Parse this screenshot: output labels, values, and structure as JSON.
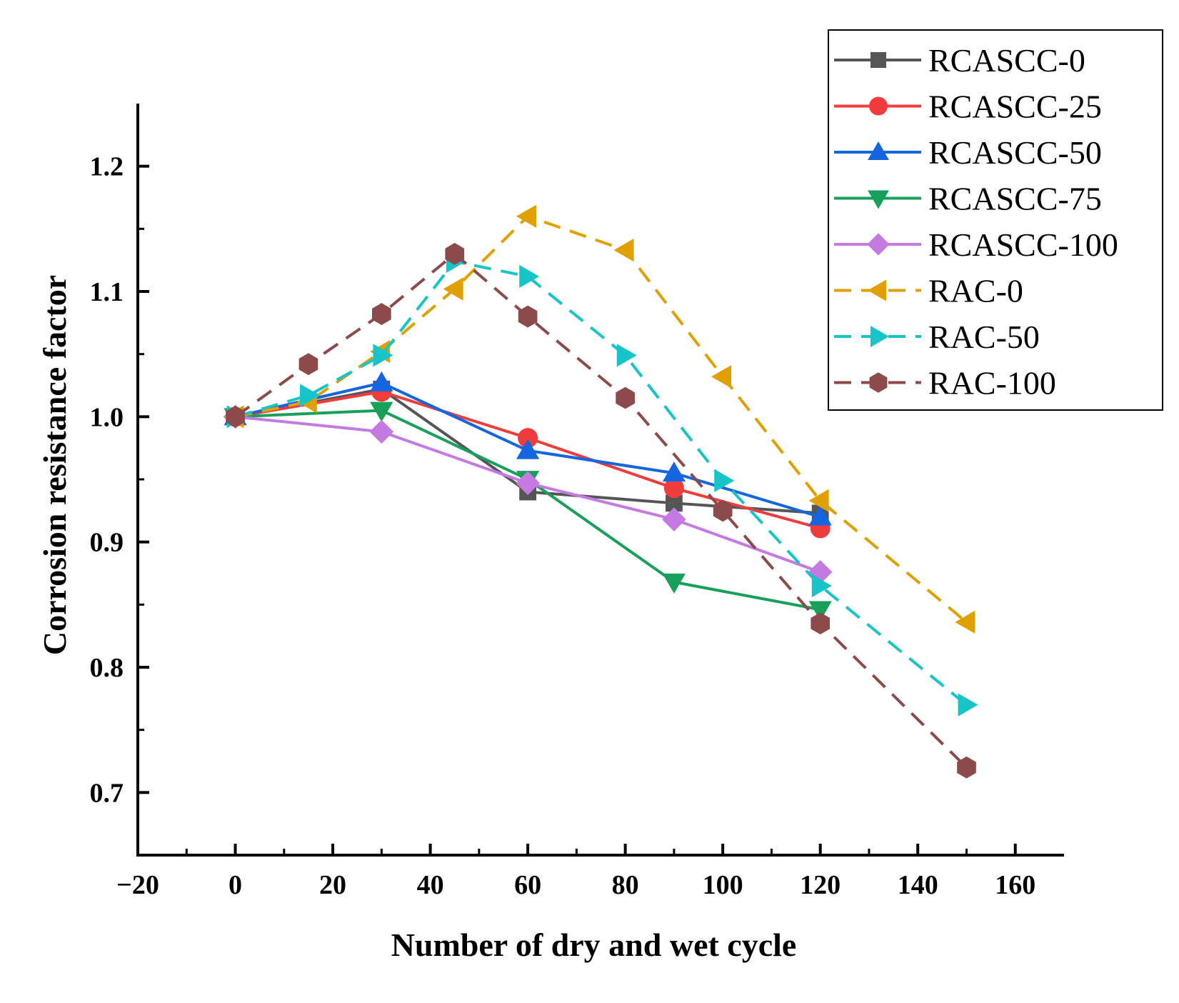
{
  "chart_data": {
    "type": "line",
    "xlabel": "Number of dry and wet cycle",
    "ylabel": "Corrosion resistance factor",
    "xlim": [
      -20,
      170
    ],
    "ylim": [
      0.65,
      1.25
    ],
    "xticks": [
      -20,
      0,
      20,
      40,
      60,
      80,
      100,
      120,
      140,
      160
    ],
    "xtick_labels": [
      "−20",
      "0",
      "20",
      "40",
      "60",
      "80",
      "100",
      "120",
      "140",
      "160"
    ],
    "yticks": [
      0.7,
      0.8,
      0.9,
      1.0,
      1.1,
      1.2
    ],
    "ytick_labels": [
      "0.7",
      "0.8",
      "0.9",
      "1.0",
      "1.1",
      "1.2"
    ],
    "legend_position": "top-right",
    "grid": false,
    "series": [
      {
        "name": "RCASCC-0",
        "color": "#555555",
        "marker": "square",
        "dashed": false,
        "x": [
          0,
          30,
          60,
          90,
          120
        ],
        "y": [
          1.0,
          1.022,
          0.94,
          0.931,
          0.923
        ]
      },
      {
        "name": "RCASCC-25",
        "color": "#f03c3c",
        "marker": "circle",
        "dashed": false,
        "x": [
          0,
          30,
          60,
          90,
          120
        ],
        "y": [
          1.0,
          1.02,
          0.983,
          0.943,
          0.911
        ]
      },
      {
        "name": "RCASCC-50",
        "color": "#1565e0",
        "marker": "triangle-up",
        "dashed": false,
        "x": [
          0,
          30,
          60,
          90,
          120
        ],
        "y": [
          1.0,
          1.027,
          0.973,
          0.955,
          0.92
        ]
      },
      {
        "name": "RCASCC-75",
        "color": "#17a05a",
        "marker": "triangle-down",
        "dashed": false,
        "x": [
          0,
          30,
          60,
          90,
          120
        ],
        "y": [
          1.0,
          1.005,
          0.95,
          0.868,
          0.846
        ]
      },
      {
        "name": "RCASCC-100",
        "color": "#c47ae0",
        "marker": "diamond",
        "dashed": false,
        "x": [
          0,
          30,
          60,
          90,
          120
        ],
        "y": [
          1.0,
          0.988,
          0.947,
          0.918,
          0.876
        ]
      },
      {
        "name": "RAC-0",
        "color": "#e0a000",
        "marker": "triangle-left",
        "dashed": true,
        "x": [
          0,
          15,
          30,
          45,
          60,
          80,
          100,
          120,
          150
        ],
        "y": [
          1.0,
          1.012,
          1.052,
          1.102,
          1.16,
          1.133,
          1.032,
          0.933,
          0.836
        ]
      },
      {
        "name": "RAC-50",
        "color": "#17c4c8",
        "marker": "triangle-right",
        "dashed": true,
        "x": [
          0,
          15,
          30,
          45,
          60,
          80,
          100,
          120,
          150
        ],
        "y": [
          1.0,
          1.017,
          1.049,
          1.124,
          1.112,
          1.049,
          0.949,
          0.865,
          0.77
        ]
      },
      {
        "name": "RAC-100",
        "color": "#8c4a4a",
        "marker": "hexagon",
        "dashed": true,
        "x": [
          0,
          15,
          30,
          45,
          60,
          80,
          100,
          120,
          150
        ],
        "y": [
          1.0,
          1.042,
          1.082,
          1.13,
          1.08,
          1.015,
          0.925,
          0.835,
          0.72
        ]
      }
    ]
  }
}
